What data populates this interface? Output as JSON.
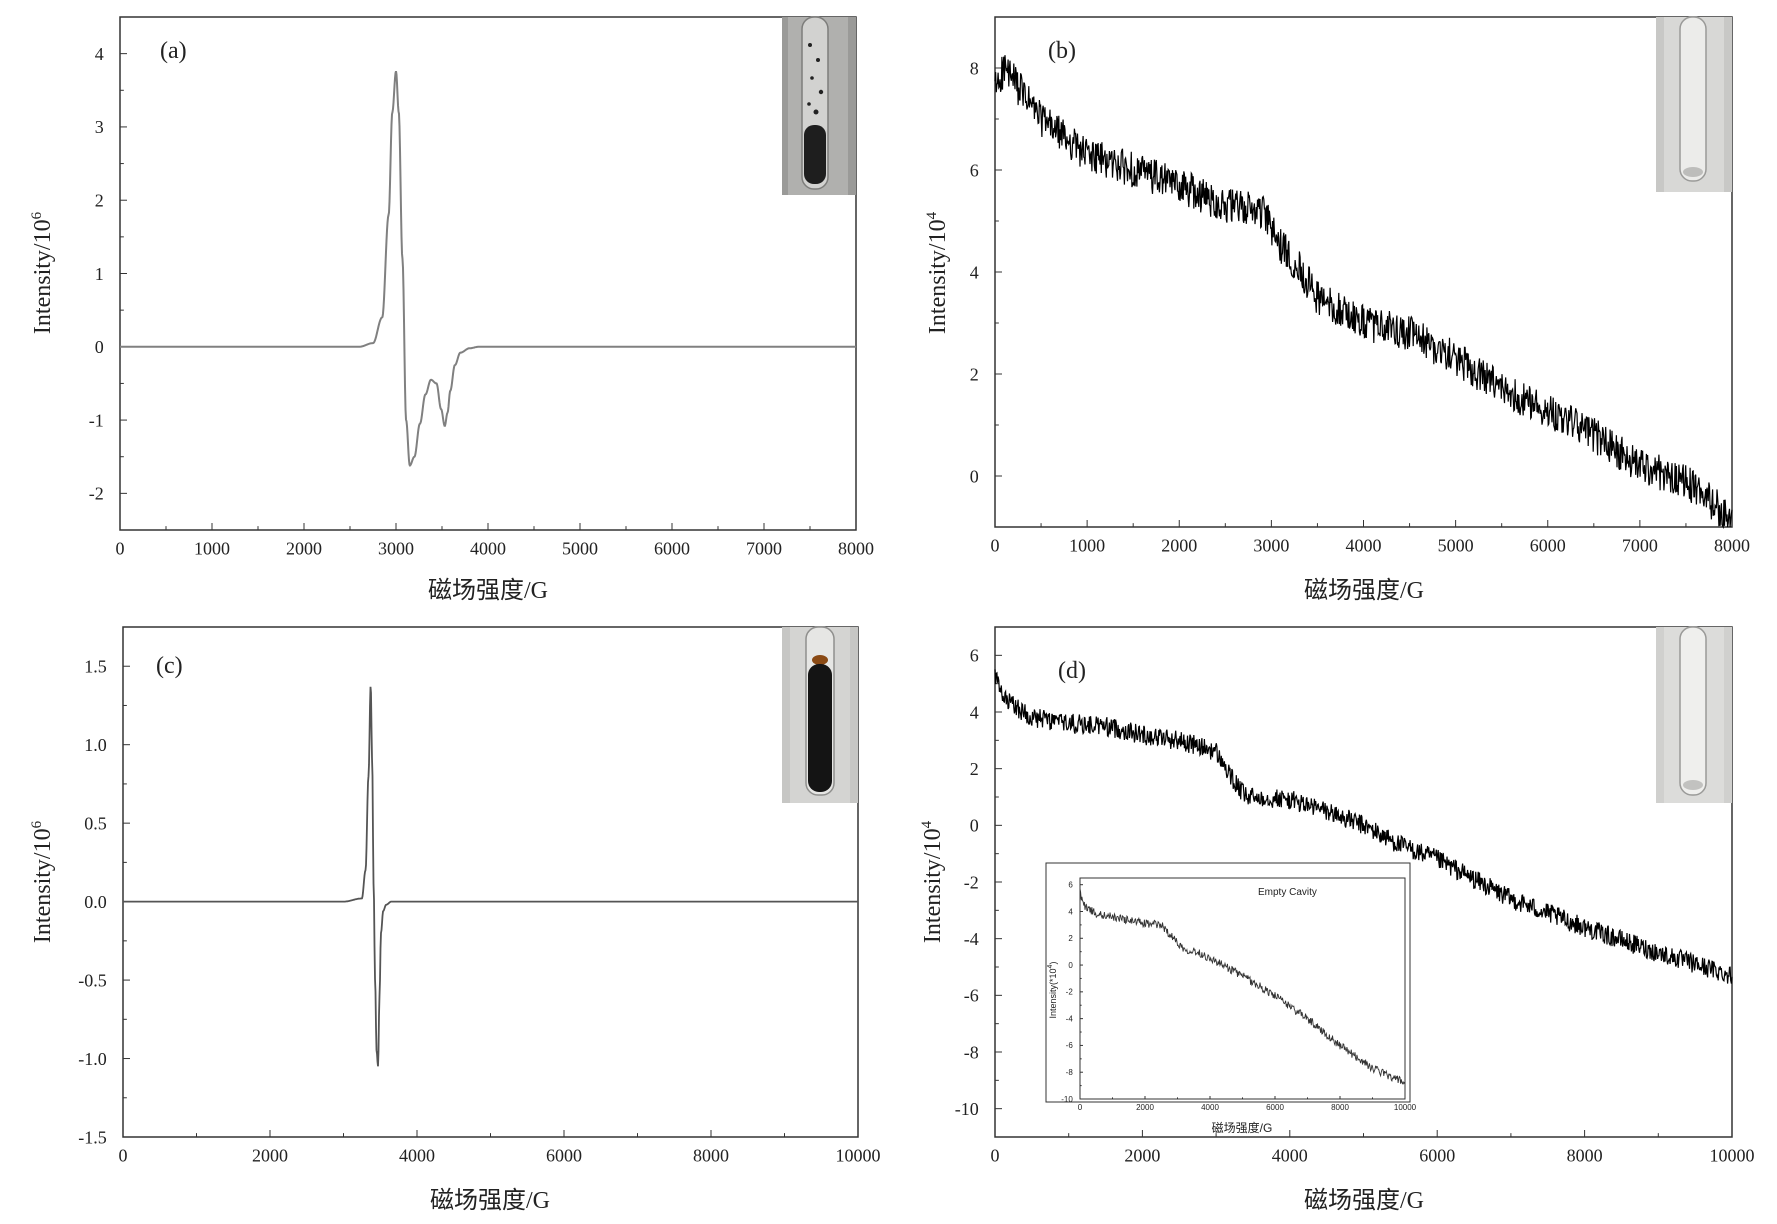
{
  "chart_data": [
    {
      "type": "line",
      "panel_label": "(a)",
      "xlabel": "磁场强度/G",
      "ylabel": "Intensity/10",
      "ylabel_sup": "6",
      "xlim": [
        0,
        8000
      ],
      "ylim": [
        -2.5,
        4.5
      ],
      "xticks": [
        0,
        1000,
        2000,
        3000,
        4000,
        5000,
        6000,
        7000,
        8000
      ],
      "xtick_labels": [
        "0",
        "1000",
        "2000",
        "3000",
        "4000",
        "5000",
        "6000",
        "7000",
        "8000"
      ],
      "yticks": [
        -2,
        -1,
        0,
        1,
        2,
        3,
        4
      ],
      "ytick_labels": [
        "-2",
        "-1",
        "0",
        "1",
        "2",
        "3",
        "4"
      ],
      "line_color": "#808080",
      "series": [
        {
          "x": [
            0,
            2000,
            2600,
            2750,
            2850,
            2920,
            2960,
            3000,
            3030,
            3070,
            3110,
            3150,
            3200,
            3260,
            3320,
            3380,
            3440,
            3490,
            3530,
            3560,
            3590,
            3640,
            3700,
            3800,
            3900,
            4000,
            5000,
            6000,
            8000
          ],
          "y": [
            0,
            0,
            0,
            0.05,
            0.4,
            1.8,
            3.2,
            3.76,
            3.2,
            1.2,
            -1.0,
            -1.62,
            -1.5,
            -1.05,
            -0.65,
            -0.45,
            -0.5,
            -0.85,
            -1.08,
            -0.9,
            -0.6,
            -0.25,
            -0.08,
            -0.02,
            0,
            0,
            0,
            0,
            0
          ]
        }
      ],
      "inset_photo": "test tube with dark granular sample"
    },
    {
      "type": "line",
      "panel_label": "(b)",
      "xlabel": "磁场强度/G",
      "ylabel": "Intensity/10",
      "ylabel_sup": "4",
      "xlim": [
        0,
        8000
      ],
      "ylim": [
        -1,
        9
      ],
      "xticks": [
        0,
        1000,
        2000,
        3000,
        4000,
        5000,
        6000,
        7000,
        8000
      ],
      "xtick_labels": [
        "0",
        "1000",
        "2000",
        "3000",
        "4000",
        "5000",
        "6000",
        "7000",
        "8000"
      ],
      "yticks": [
        0,
        2,
        4,
        6,
        8
      ],
      "ytick_labels": [
        "0",
        "2",
        "4",
        "6",
        "8"
      ],
      "line_color": "#000000",
      "noise_amplitude": 0.35,
      "series": [
        {
          "x": [
            0,
            100,
            500,
            1000,
            1500,
            2000,
            2500,
            2900,
            3100,
            3300,
            3500,
            4000,
            4500,
            5000,
            5500,
            6000,
            6500,
            7000,
            7500,
            7900,
            8000
          ],
          "y": [
            7.6,
            8.0,
            7.0,
            6.3,
            6.0,
            5.7,
            5.3,
            5.2,
            4.5,
            4.1,
            3.5,
            3.0,
            2.8,
            2.3,
            1.7,
            1.3,
            0.8,
            0.2,
            -0.1,
            -0.7,
            -1.0
          ]
        }
      ],
      "inset_photo": "empty clear test tube"
    },
    {
      "type": "line",
      "panel_label": "(c)",
      "xlabel": "磁场强度/G",
      "ylabel": "Intensity/10",
      "ylabel_sup": "6",
      "xlim": [
        0,
        10000
      ],
      "ylim": [
        -1.5,
        1.75
      ],
      "xticks": [
        0,
        2000,
        4000,
        6000,
        8000,
        10000
      ],
      "xtick_labels": [
        "0",
        "2000",
        "4000",
        "6000",
        "8000",
        "10000"
      ],
      "yticks": [
        -1.5,
        -1.0,
        -0.5,
        0.0,
        0.5,
        1.0,
        1.5
      ],
      "ytick_labels": [
        "-1.5",
        "-1.0",
        "-0.5",
        "0.0",
        "0.5",
        "1.0",
        "1.5"
      ],
      "line_color": "#555555",
      "series": [
        {
          "x": [
            0,
            3000,
            3250,
            3300,
            3340,
            3370,
            3390,
            3410,
            3430,
            3450,
            3470,
            3490,
            3510,
            3540,
            3580,
            3650,
            3750,
            4000,
            6000,
            10000
          ],
          "y": [
            0,
            0,
            0.02,
            0.2,
            0.8,
            1.38,
            0.9,
            0.1,
            -0.5,
            -0.95,
            -1.05,
            -0.6,
            -0.2,
            -0.06,
            -0.02,
            0,
            0,
            0,
            0,
            0
          ]
        }
      ],
      "inset_photo": "test tube filled with dark liquid"
    },
    {
      "type": "line",
      "panel_label": "(d)",
      "xlabel": "磁场强度/G",
      "ylabel": "Intensity/10",
      "ylabel_sup": "4",
      "xlim": [
        0,
        10000
      ],
      "ylim": [
        -11,
        7
      ],
      "xticks": [
        0,
        2000,
        4000,
        6000,
        8000,
        10000
      ],
      "xtick_labels": [
        "0",
        "2000",
        "4000",
        "6000",
        "8000",
        "10000"
      ],
      "yticks": [
        -10,
        -8,
        -6,
        -4,
        -2,
        0,
        2,
        4,
        6
      ],
      "ytick_labels": [
        "-10",
        "-8",
        "-6",
        "-4",
        "-2",
        "0",
        "2",
        "4",
        "6"
      ],
      "line_color": "#000000",
      "noise_amplitude": 0.35,
      "series": [
        {
          "x": [
            0,
            100,
            500,
            1000,
            1500,
            2000,
            2500,
            3000,
            3200,
            3400,
            3600,
            4000,
            4500,
            5000,
            5500,
            6000,
            7000,
            8000,
            9000,
            10000
          ],
          "y": [
            5.3,
            4.5,
            3.8,
            3.6,
            3.5,
            3.2,
            3.0,
            2.6,
            1.7,
            1.0,
            1.0,
            0.9,
            0.5,
            0.0,
            -0.7,
            -1.2,
            -2.6,
            -3.6,
            -4.5,
            -5.3
          ]
        }
      ],
      "inset_photo": "empty clear test tube",
      "inset_chart": {
        "type": "line",
        "title": "Empty Cavity",
        "xlabel": "磁场强度/G",
        "ylabel": "Intensity(*10",
        "ylabel_sup": "4",
        "ylabel_suffix": ")",
        "xlim": [
          0,
          10000
        ],
        "ylim": [
          -10,
          6.5
        ],
        "xticks": [
          0,
          2000,
          4000,
          6000,
          8000,
          10000
        ],
        "xtick_labels": [
          "0",
          "2000",
          "4000",
          "6000",
          "8000",
          "10000"
        ],
        "yticks": [
          -10,
          -8,
          -6,
          -4,
          -2,
          0,
          2,
          4,
          6
        ],
        "ytick_labels": [
          "-10",
          "-8",
          "-6",
          "-4",
          "-2",
          "0",
          "2",
          "4",
          "6"
        ],
        "line_color": "#333333",
        "noise_amplitude": 0.3,
        "series": [
          {
            "x": [
              0,
              100,
              500,
              1000,
              2000,
              2500,
              2800,
              3200,
              3600,
              4000,
              5000,
              6000,
              7000,
              8000,
              9000,
              10000
            ],
            "y": [
              5.5,
              4.5,
              3.8,
              3.6,
              3.1,
              3.0,
              2.2,
              1.2,
              1.0,
              0.5,
              -0.8,
              -2.3,
              -4.0,
              -6.0,
              -7.7,
              -8.8
            ]
          }
        ]
      }
    }
  ]
}
